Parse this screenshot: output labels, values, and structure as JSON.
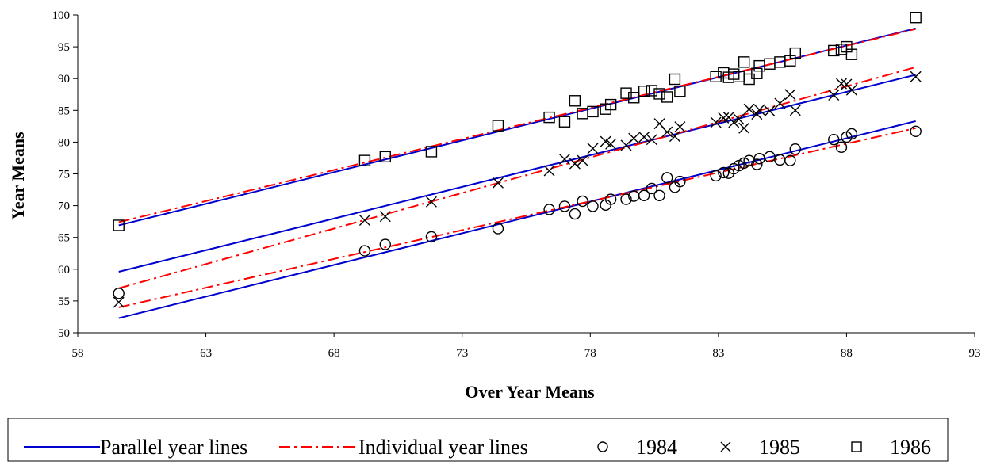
{
  "chart_data": {
    "type": "scatter",
    "xlabel": "Over Year Means",
    "ylabel": "Year Means",
    "xlim": [
      58,
      93
    ],
    "ylim": [
      50,
      100
    ],
    "x_ticks": [
      58,
      63,
      68,
      73,
      78,
      83,
      88,
      93
    ],
    "y_ticks": [
      50,
      55,
      60,
      65,
      70,
      75,
      80,
      85,
      90,
      95,
      100
    ],
    "grid": false,
    "legend_position": "bottom",
    "legend": {
      "parallel_label": "Parallel year lines",
      "individual_label": "Individual year lines"
    },
    "colors": {
      "parallel": "#0000cc",
      "individual": "#ff0000",
      "markers": "#000000"
    },
    "series": [
      {
        "name": "1984",
        "marker": "circle",
        "points": [
          [
            59.6,
            56.2
          ],
          [
            69.2,
            62.9
          ],
          [
            70.0,
            63.9
          ],
          [
            71.8,
            65.1
          ],
          [
            74.4,
            66.4
          ],
          [
            76.4,
            69.4
          ],
          [
            77.0,
            69.9
          ],
          [
            77.4,
            68.7
          ],
          [
            77.7,
            70.7
          ],
          [
            78.1,
            69.9
          ],
          [
            78.6,
            70.1
          ],
          [
            78.8,
            71.0
          ],
          [
            79.4,
            71.0
          ],
          [
            79.7,
            71.5
          ],
          [
            80.1,
            71.6
          ],
          [
            80.4,
            72.7
          ],
          [
            80.7,
            71.6
          ],
          [
            81.0,
            74.4
          ],
          [
            81.3,
            72.9
          ],
          [
            81.5,
            73.8
          ],
          [
            82.9,
            74.7
          ],
          [
            83.2,
            75.2
          ],
          [
            83.4,
            75.1
          ],
          [
            83.6,
            75.8
          ],
          [
            83.8,
            76.3
          ],
          [
            84.0,
            76.7
          ],
          [
            84.2,
            77.1
          ],
          [
            84.5,
            76.5
          ],
          [
            84.6,
            77.4
          ],
          [
            85.0,
            77.7
          ],
          [
            85.4,
            77.2
          ],
          [
            85.8,
            77.1
          ],
          [
            86.0,
            78.9
          ],
          [
            87.5,
            80.4
          ],
          [
            87.8,
            79.2
          ],
          [
            88.0,
            80.8
          ],
          [
            88.2,
            81.3
          ],
          [
            90.7,
            81.7
          ]
        ]
      },
      {
        "name": "1985",
        "marker": "x",
        "points": [
          [
            59.6,
            54.8
          ],
          [
            69.2,
            67.7
          ],
          [
            70.0,
            68.3
          ],
          [
            71.8,
            70.6
          ],
          [
            74.4,
            73.6
          ],
          [
            76.4,
            75.5
          ],
          [
            77.0,
            77.3
          ],
          [
            77.4,
            76.6
          ],
          [
            77.7,
            77.1
          ],
          [
            78.1,
            79.0
          ],
          [
            78.6,
            80.1
          ],
          [
            78.8,
            79.7
          ],
          [
            79.4,
            79.5
          ],
          [
            79.7,
            80.6
          ],
          [
            80.1,
            80.8
          ],
          [
            80.4,
            80.4
          ],
          [
            80.7,
            82.9
          ],
          [
            81.0,
            81.6
          ],
          [
            81.3,
            80.9
          ],
          [
            81.5,
            82.4
          ],
          [
            82.9,
            83.1
          ],
          [
            83.2,
            83.8
          ],
          [
            83.4,
            83.9
          ],
          [
            83.6,
            83.1
          ],
          [
            83.8,
            83.6
          ],
          [
            84.0,
            82.2
          ],
          [
            84.2,
            85.2
          ],
          [
            84.5,
            84.4
          ],
          [
            84.6,
            85.1
          ],
          [
            85.0,
            84.9
          ],
          [
            85.4,
            86.1
          ],
          [
            85.8,
            87.5
          ],
          [
            86.0,
            85.0
          ],
          [
            87.5,
            87.4
          ],
          [
            87.8,
            89.2
          ],
          [
            88.0,
            89.1
          ],
          [
            88.2,
            88.2
          ],
          [
            90.7,
            90.3
          ]
        ]
      },
      {
        "name": "1986",
        "marker": "square",
        "points": [
          [
            59.6,
            66.9
          ],
          [
            69.2,
            77.1
          ],
          [
            70.0,
            77.7
          ],
          [
            71.8,
            78.5
          ],
          [
            74.4,
            82.6
          ],
          [
            76.4,
            83.9
          ],
          [
            77.0,
            83.2
          ],
          [
            77.4,
            86.5
          ],
          [
            77.7,
            84.5
          ],
          [
            78.1,
            84.8
          ],
          [
            78.6,
            85.2
          ],
          [
            78.8,
            85.9
          ],
          [
            79.4,
            87.7
          ],
          [
            79.7,
            87.0
          ],
          [
            80.1,
            88.0
          ],
          [
            80.4,
            88.1
          ],
          [
            80.7,
            87.6
          ],
          [
            81.0,
            87.1
          ],
          [
            81.3,
            89.9
          ],
          [
            81.5,
            88.0
          ],
          [
            82.9,
            90.3
          ],
          [
            83.2,
            90.9
          ],
          [
            83.4,
            90.2
          ],
          [
            83.6,
            90.7
          ],
          [
            83.8,
            90.3
          ],
          [
            84.0,
            92.6
          ],
          [
            84.2,
            89.9
          ],
          [
            84.5,
            90.8
          ],
          [
            84.6,
            92.0
          ],
          [
            85.0,
            92.3
          ],
          [
            85.4,
            92.6
          ],
          [
            85.8,
            92.8
          ],
          [
            86.0,
            94.0
          ],
          [
            87.5,
            94.4
          ],
          [
            87.8,
            94.6
          ],
          [
            88.0,
            95.0
          ],
          [
            88.2,
            93.8
          ],
          [
            90.7,
            99.6
          ]
        ]
      }
    ],
    "parallel_lines": [
      {
        "year": "1984",
        "x": [
          59.6,
          90.7
        ],
        "y": [
          52.3,
          83.3
        ]
      },
      {
        "year": "1985",
        "x": [
          59.6,
          90.7
        ],
        "y": [
          59.6,
          90.6
        ]
      },
      {
        "year": "1986",
        "x": [
          59.6,
          90.7
        ],
        "y": [
          66.9,
          97.9
        ]
      }
    ],
    "individual_lines": [
      {
        "year": "1984",
        "x": [
          59.6,
          90.7
        ],
        "y": [
          54.0,
          82.2
        ]
      },
      {
        "year": "1985",
        "x": [
          59.6,
          90.7
        ],
        "y": [
          57.0,
          91.8
        ]
      },
      {
        "year": "1986",
        "x": [
          59.6,
          90.7
        ],
        "y": [
          67.4,
          97.8
        ]
      }
    ]
  }
}
